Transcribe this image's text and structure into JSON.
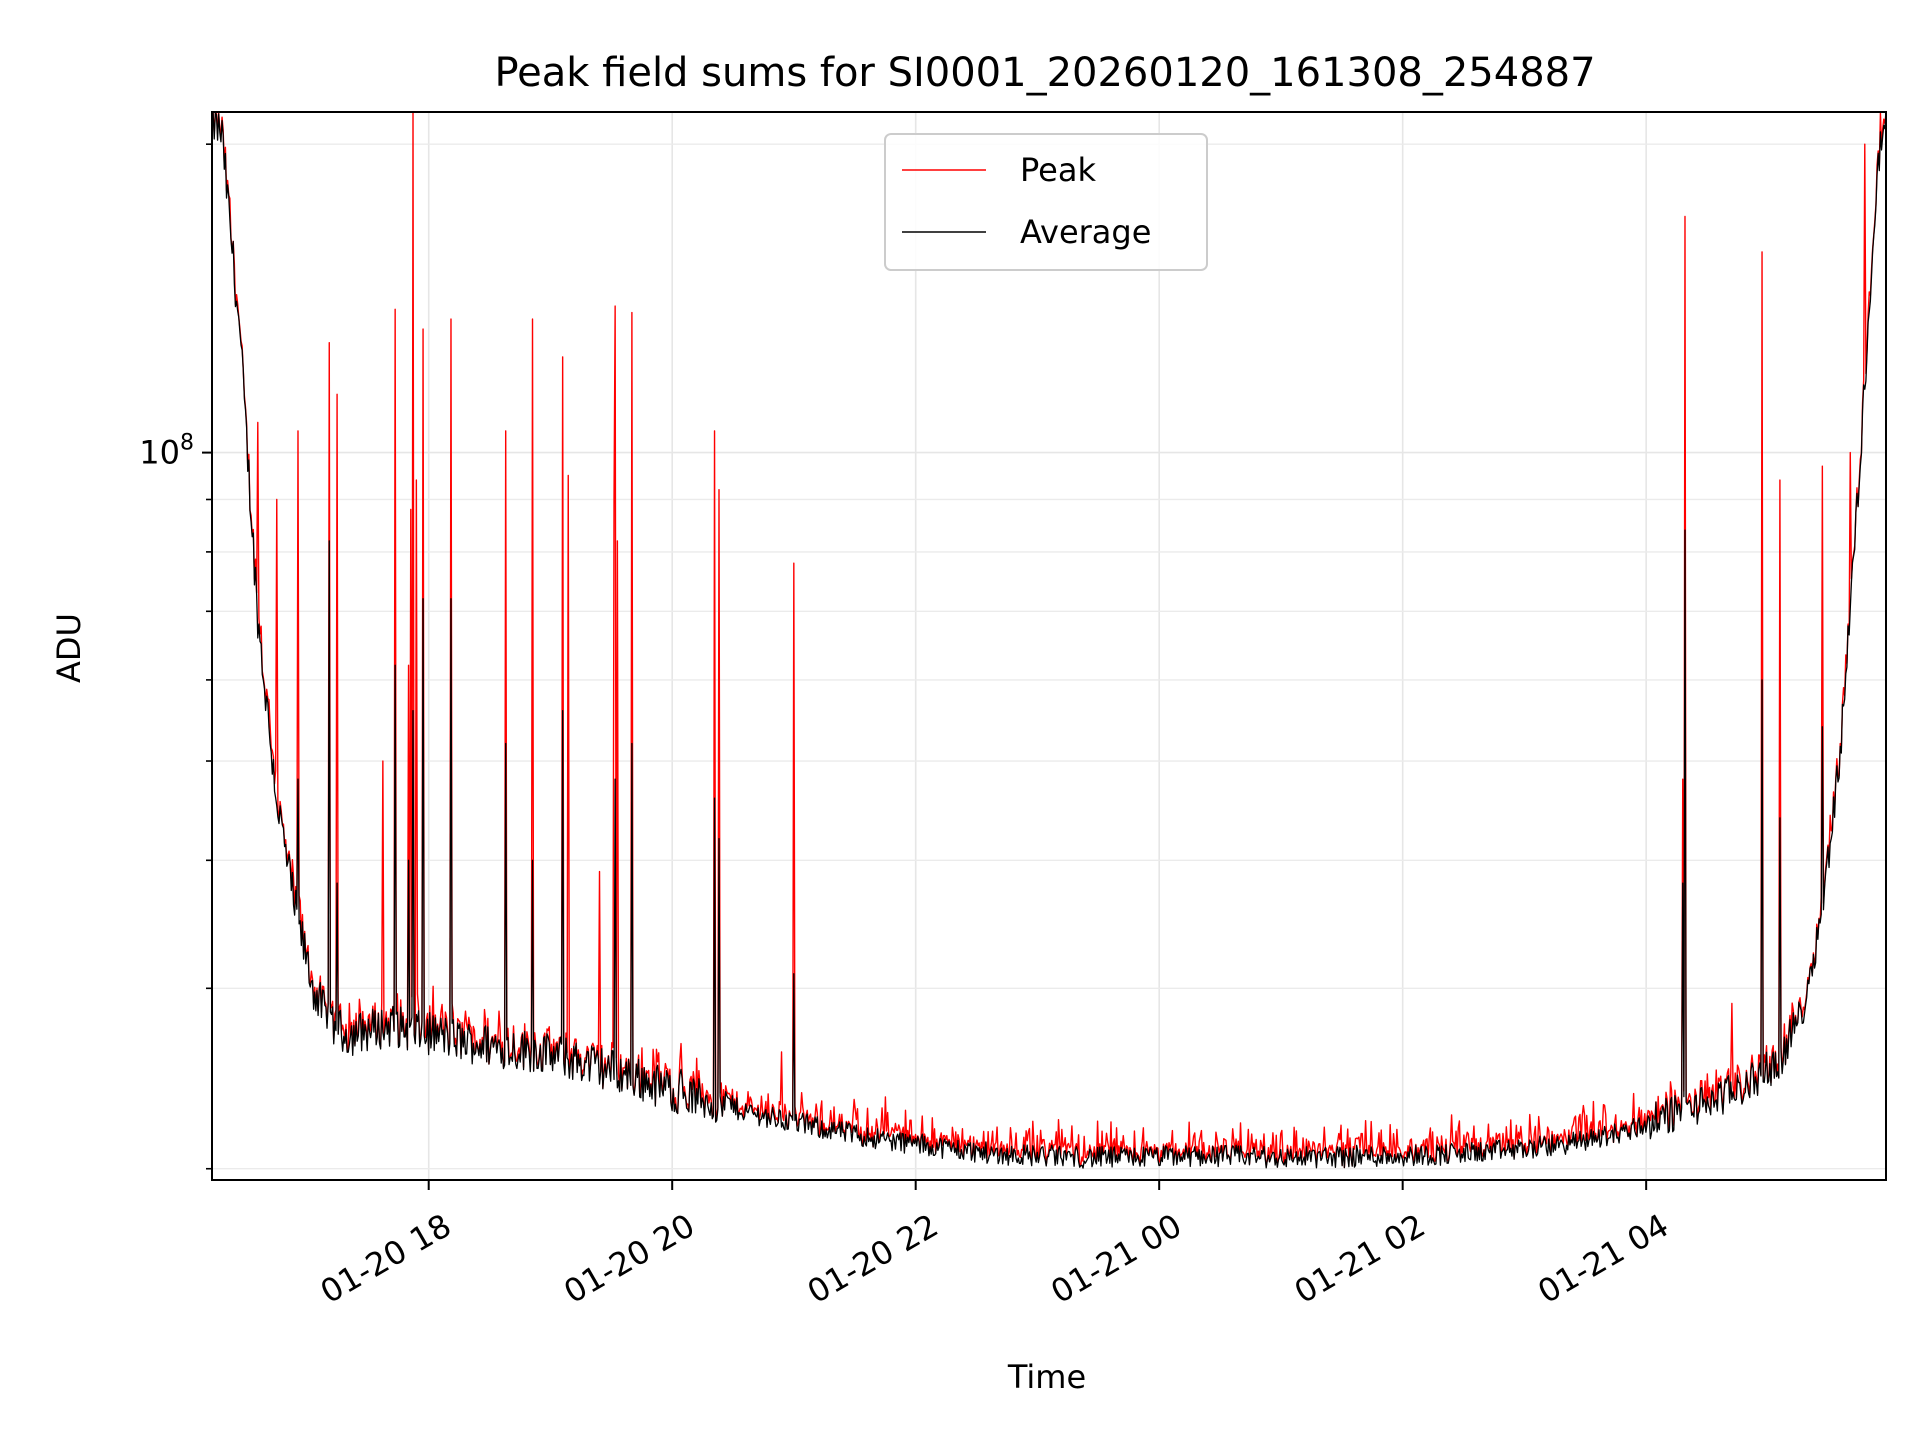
{
  "chart_data": {
    "type": "line",
    "title": "Peak field sums for SI0001_20260120_161308_254887",
    "xlabel": "Time",
    "ylabel": "ADU",
    "yscale": "log",
    "grid": true,
    "legend_position": "top-center",
    "x_axis": {
      "start_hour": 16.22,
      "end_hour": 29.97,
      "ticks": [
        {
          "hour": 18,
          "label": "01-20 18"
        },
        {
          "hour": 20,
          "label": "01-20 20"
        },
        {
          "hour": 22,
          "label": "01-20 22"
        },
        {
          "hour": 24,
          "label": "01-21 00"
        },
        {
          "hour": 26,
          "label": "01-21 02"
        },
        {
          "hour": 28,
          "label": "01-21 04"
        }
      ]
    },
    "y_axis": {
      "ylim": [
        19500000,
        215000000
      ],
      "major_ticks": [
        {
          "value": 100000000,
          "label_base": "10",
          "label_exp": "8"
        }
      ],
      "minor_ticks": [
        20000000,
        30000000,
        40000000,
        50000000,
        60000000,
        70000000,
        80000000,
        90000000,
        200000000
      ]
    },
    "baseline_points": [
      [
        16.22,
        210000000
      ],
      [
        16.3,
        205000000
      ],
      [
        16.45,
        130000000
      ],
      [
        16.6,
        68000000
      ],
      [
        16.75,
        46000000
      ],
      [
        16.9,
        36000000
      ],
      [
        17.05,
        30000000
      ],
      [
        17.2,
        27500000
      ],
      [
        17.35,
        27000000
      ],
      [
        17.5,
        27300000
      ],
      [
        17.7,
        27600000
      ],
      [
        17.9,
        27200000
      ],
      [
        18.1,
        27000000
      ],
      [
        18.3,
        26600000
      ],
      [
        18.6,
        26300000
      ],
      [
        18.9,
        26000000
      ],
      [
        19.2,
        25500000
      ],
      [
        19.5,
        25000000
      ],
      [
        19.8,
        24300000
      ],
      [
        20.1,
        23600000
      ],
      [
        20.4,
        23100000
      ],
      [
        20.7,
        22600000
      ],
      [
        21.0,
        22200000
      ],
      [
        21.4,
        21700000
      ],
      [
        21.8,
        21300000
      ],
      [
        22.2,
        21000000
      ],
      [
        22.6,
        20700000
      ],
      [
        23.0,
        20600000
      ],
      [
        23.5,
        20500000
      ],
      [
        24.0,
        20550000
      ],
      [
        24.5,
        20600000
      ],
      [
        25.0,
        20500000
      ],
      [
        25.5,
        20550000
      ],
      [
        26.0,
        20600000
      ],
      [
        26.5,
        20700000
      ],
      [
        27.0,
        20900000
      ],
      [
        27.4,
        21200000
      ],
      [
        27.8,
        21700000
      ],
      [
        28.0,
        22100000
      ],
      [
        28.2,
        22600000
      ],
      [
        28.5,
        23200000
      ],
      [
        28.8,
        24000000
      ],
      [
        29.1,
        25500000
      ],
      [
        29.3,
        29000000
      ],
      [
        29.45,
        36000000
      ],
      [
        29.6,
        52000000
      ],
      [
        29.75,
        95000000
      ],
      [
        29.85,
        150000000
      ],
      [
        29.92,
        200000000
      ],
      [
        29.97,
        210000000
      ]
    ],
    "series": [
      {
        "name": "Peak",
        "color": "#ff0000",
        "spikes": [
          [
            16.6,
            107000000
          ],
          [
            16.75,
            90000000
          ],
          [
            16.93,
            105000000
          ],
          [
            17.18,
            128000000
          ],
          [
            17.25,
            114000000
          ],
          [
            17.35,
            29000000
          ],
          [
            17.62,
            50000000
          ],
          [
            17.72,
            138000000
          ],
          [
            17.83,
            62000000
          ],
          [
            17.85,
            88000000
          ],
          [
            17.87,
            220000000
          ],
          [
            17.9,
            94000000
          ],
          [
            17.95,
            132000000
          ],
          [
            18.18,
            135000000
          ],
          [
            18.3,
            28500000
          ],
          [
            18.58,
            28500000
          ],
          [
            18.63,
            105000000
          ],
          [
            18.85,
            135000000
          ],
          [
            19.1,
            124000000
          ],
          [
            19.15,
            95000000
          ],
          [
            19.4,
            39000000
          ],
          [
            19.52,
            90000000
          ],
          [
            19.53,
            139000000
          ],
          [
            19.55,
            82000000
          ],
          [
            19.67,
            137000000
          ],
          [
            20.07,
            26500000
          ],
          [
            20.35,
            105000000
          ],
          [
            20.38,
            92000000
          ],
          [
            20.9,
            26000000
          ],
          [
            21.0,
            78000000
          ],
          [
            21.75,
            23500000
          ],
          [
            23.45,
            20700000
          ],
          [
            25.6,
            20900000
          ],
          [
            27.2,
            21800000
          ],
          [
            28.3,
            48000000
          ],
          [
            28.32,
            170000000
          ],
          [
            28.7,
            29000000
          ],
          [
            28.95,
            157000000
          ],
          [
            29.1,
            94000000
          ],
          [
            29.45,
            97000000
          ],
          [
            29.68,
            100000000
          ],
          [
            29.8,
            200000000
          ]
        ]
      },
      {
        "name": "Average",
        "color": "#000000",
        "spikes": [
          [
            16.6,
            42000000
          ],
          [
            16.75,
            36000000
          ],
          [
            16.93,
            48000000
          ],
          [
            17.18,
            82000000
          ],
          [
            17.25,
            38000000
          ],
          [
            17.72,
            62000000
          ],
          [
            17.83,
            40000000
          ],
          [
            17.87,
            56000000
          ],
          [
            17.95,
            72000000
          ],
          [
            18.18,
            72000000
          ],
          [
            18.63,
            52000000
          ],
          [
            18.85,
            40000000
          ],
          [
            19.1,
            56000000
          ],
          [
            19.53,
            48000000
          ],
          [
            19.67,
            52000000
          ],
          [
            20.07,
            25000000
          ],
          [
            20.35,
            46000000
          ],
          [
            20.38,
            42000000
          ],
          [
            21.0,
            31000000
          ],
          [
            28.3,
            38000000
          ],
          [
            28.32,
            84000000
          ],
          [
            28.95,
            60000000
          ],
          [
            29.1,
            44000000
          ],
          [
            29.45,
            54000000
          ]
        ]
      }
    ]
  }
}
